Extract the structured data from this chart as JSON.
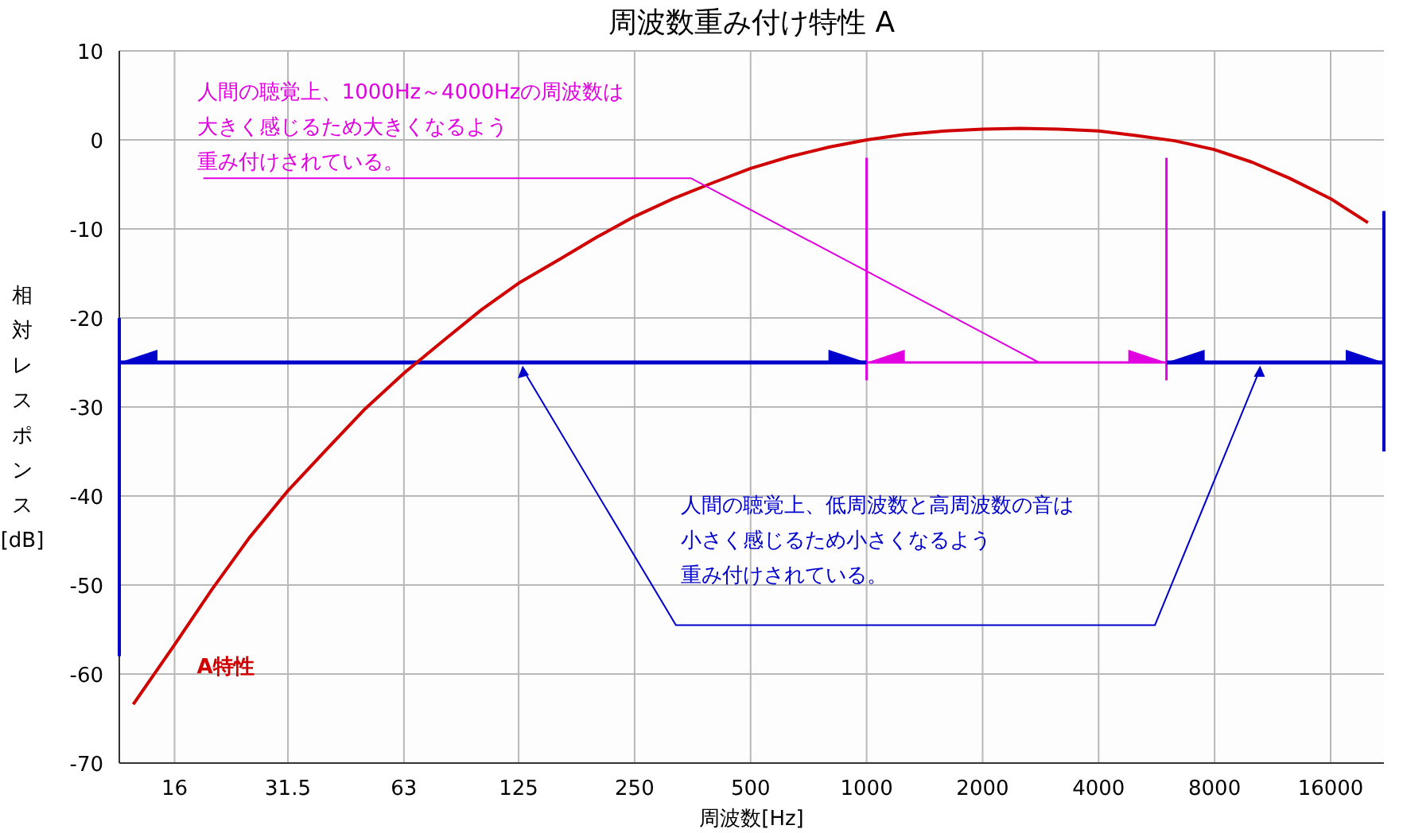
{
  "chart_data": {
    "type": "line",
    "title": "周波数重み付け特性 A",
    "xlabel": "周波数[Hz]",
    "ylabel": "相対レスポンス[dB]",
    "log": "x",
    "xlim": [
      11.5,
      22000
    ],
    "xticks": [
      16,
      31.5,
      63,
      125,
      250,
      500,
      1000,
      2000,
      4000,
      8000,
      16000
    ],
    "ylim": [
      -70,
      10
    ],
    "yticks": [
      -70,
      -60,
      -50,
      -40,
      -30,
      -20,
      -10,
      0,
      10
    ],
    "grid": true,
    "marker": "none",
    "line_style": "solid",
    "series": [
      {
        "name": "A特性",
        "color": "#d00000",
        "x": [
          12.5,
          16,
          20,
          25,
          31.5,
          40,
          50,
          63,
          80,
          100,
          125,
          160,
          200,
          250,
          315,
          400,
          500,
          630,
          800,
          1000,
          1250,
          1600,
          2000,
          2500,
          3150,
          4000,
          5000,
          6300,
          8000,
          10000,
          12500,
          16000,
          20000
        ],
        "values": [
          -63.4,
          -56.7,
          -50.5,
          -44.7,
          -39.4,
          -34.6,
          -30.2,
          -26.2,
          -22.5,
          -19.1,
          -16.1,
          -13.4,
          -10.9,
          -8.6,
          -6.6,
          -4.8,
          -3.2,
          -1.9,
          -0.8,
          0,
          0.6,
          1.0,
          1.2,
          1.3,
          1.2,
          1.0,
          0.5,
          -0.1,
          -1.1,
          -2.5,
          -4.3,
          -6.6,
          -9.3
        ]
      }
    ],
    "ref_lines": [
      {
        "axis": "x",
        "value": 1000,
        "color": "#e000e0"
      },
      {
        "axis": "x",
        "value": 6000,
        "color": "#e000e0"
      }
    ],
    "annotations": [
      "人間の聴覚上、1000Hz～4000Hzの周波数は",
      "大きく感じるため大きくなるよう",
      "重み付けされている。",
      "人間の聴覚上、低周波数と高周波数の音は",
      "小さく感じるため小さくなるよう",
      "重み付けされている。"
    ]
  }
}
